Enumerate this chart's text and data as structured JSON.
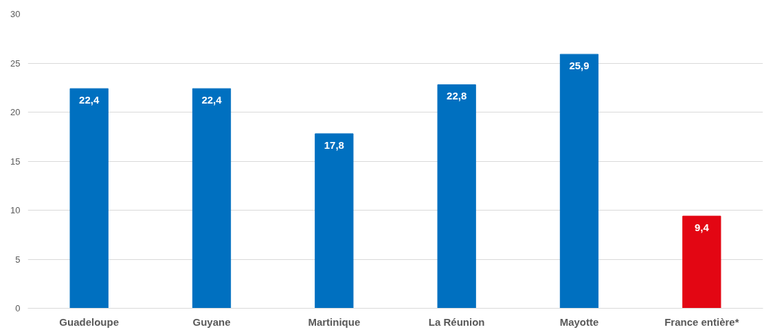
{
  "chart_data": {
    "type": "bar",
    "categories": [
      "Guadeloupe",
      "Guyane",
      "Martinique",
      "La Réunion",
      "Mayotte",
      "France entière*"
    ],
    "values": [
      22.4,
      22.4,
      17.8,
      22.8,
      25.9,
      9.4
    ],
    "colors": [
      "#0070c0",
      "#0070c0",
      "#0070c0",
      "#0070c0",
      "#0070c0",
      "#e30613"
    ],
    "value_labels": [
      "22,4",
      "22,4",
      "17,8",
      "22,8",
      "25,9",
      "9,4"
    ],
    "ylim": [
      0,
      30
    ],
    "yticks": [
      0,
      5,
      10,
      15,
      20,
      25,
      30
    ],
    "grid": "y"
  }
}
